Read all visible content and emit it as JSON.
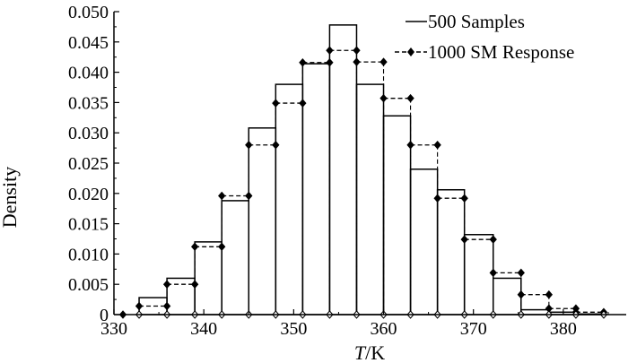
{
  "chart_data": {
    "type": "bar",
    "xlabel": "T/K",
    "xlabel_italic": "T",
    "xlabel_rest": "/K",
    "ylabel": "Density",
    "xlim": [
      330,
      387
    ],
    "ylim": [
      0,
      0.05
    ],
    "xticks": [
      "330",
      "340",
      "350",
      "360",
      "370",
      "380"
    ],
    "yticks": [
      "0",
      "0.005",
      "0.010",
      "0.015",
      "0.020",
      "0.025",
      "0.030",
      "0.035",
      "0.040",
      "0.045",
      "0.050"
    ],
    "grid": false,
    "legend_position": "top-right",
    "bin_edges": [
      332.8,
      335.9,
      339.0,
      342.0,
      345.0,
      348.0,
      351.0,
      354.0,
      357.0,
      360.0,
      363.0,
      366.0,
      369.0,
      372.2,
      375.3,
      378.4,
      381.4,
      384.5
    ],
    "series": [
      {
        "name": "500 Samples",
        "style": "histogram",
        "values": [
          0.0028,
          0.006,
          0.012,
          0.0188,
          0.0308,
          0.038,
          0.0414,
          0.0478,
          0.038,
          0.0328,
          0.024,
          0.0206,
          0.0132,
          0.006,
          0.0008,
          0.0004,
          0.0001
        ]
      },
      {
        "name": "1000 SM Response",
        "style": "step-dashed-markers",
        "values": [
          0.0014,
          0.005,
          0.0112,
          0.0196,
          0.028,
          0.0349,
          0.0416,
          0.0436,
          0.0417,
          0.0357,
          0.028,
          0.0192,
          0.0124,
          0.0069,
          0.0033,
          0.001,
          0.0004
        ]
      }
    ]
  }
}
